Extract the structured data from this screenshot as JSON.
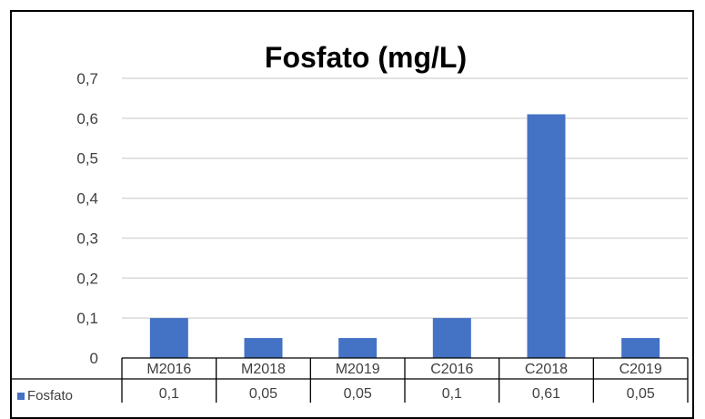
{
  "chart_data": {
    "type": "bar",
    "title": "Fosfato (mg/L)",
    "categories": [
      "M2016",
      "M2018",
      "M2019",
      "C2016",
      "C2018",
      "C2019"
    ],
    "series": [
      {
        "name": "Fosfato",
        "values": [
          0.1,
          0.05,
          0.05,
          0.1,
          0.61,
          0.05
        ],
        "color": "#4472C4"
      }
    ],
    "data_table": {
      "row_label": "Fosfato",
      "cells": [
        "0,1",
        "0,05",
        "0,05",
        "0,1",
        "0,61",
        "0,05"
      ]
    },
    "y_ticks": [
      "0",
      "0,1",
      "0,2",
      "0,3",
      "0,4",
      "0,5",
      "0,6",
      "0,7"
    ],
    "ylim": [
      0,
      0.7
    ],
    "grid": true,
    "legend": "data-table-row"
  }
}
